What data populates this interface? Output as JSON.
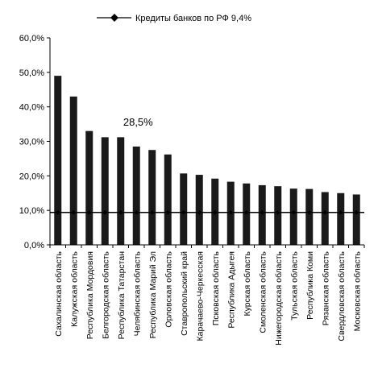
{
  "chart_data": {
    "type": "bar",
    "categories": [
      "Сахалинская область",
      "Калужская область",
      "Республика Мордовия",
      "Белгородская область",
      "Республика Татарстан",
      "Челябинская область",
      "Республика Марий Эл",
      "Орловская область",
      "Ставропольский край",
      "Карачаево-Черкесская",
      "Псковская область",
      "Республика Адыгея",
      "Курская область",
      "Смоленская область",
      "Нижегородская область",
      "Тульская область",
      "Республика Коми",
      "Рязанская область",
      "Свердловская область",
      "Московская область"
    ],
    "series": [
      {
        "values": [
          49.0,
          43.0,
          33.0,
          31.2,
          31.2,
          28.5,
          27.5,
          26.2,
          20.7,
          20.3,
          19.2,
          18.3,
          17.8,
          17.3,
          17.0,
          16.3,
          16.2,
          15.3,
          15.0,
          14.6
        ]
      }
    ],
    "reference_line": {
      "name": "Кредиты банков по РФ 9,4%",
      "value": 9.4
    },
    "annotation": "28,5%",
    "yticks": [
      "0,0%",
      "10,0%",
      "20,0%",
      "30,0%",
      "40,0%",
      "50,0%",
      "60,0%"
    ],
    "ylim": [
      0,
      60
    ],
    "legend_position": "top",
    "grid": false,
    "colors": {
      "bar": "#1a1a1a",
      "line": "#000000",
      "axis": "#000000"
    }
  }
}
